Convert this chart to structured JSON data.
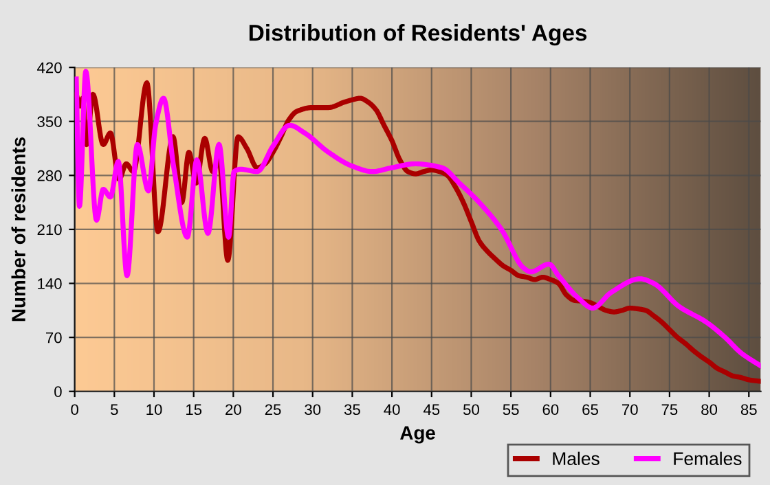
{
  "chart_data": {
    "type": "line",
    "title": "Distribution of Residents' Ages",
    "xlabel": "Age",
    "ylabel": "Number of residents",
    "xlim": [
      0,
      86.5
    ],
    "xticks": [
      0,
      5,
      10,
      15,
      20,
      25,
      30,
      35,
      40,
      45,
      50,
      55,
      60,
      65,
      70,
      75,
      80,
      85
    ],
    "ylim": [
      0,
      420
    ],
    "yticks": [
      0,
      70,
      140,
      210,
      280,
      350,
      420
    ],
    "grid": true,
    "legend": "bottom right",
    "series": [
      {
        "name": "Males",
        "color": "#aa0000",
        "x": [
          0.2,
          0.7,
          1.0,
          1.5,
          2.3,
          3.6,
          4.5,
          5.6,
          6.5,
          7.4,
          9.1,
          10.5,
          12.4,
          13.5,
          14.4,
          15.3,
          16.4,
          17.4,
          18.2,
          19.3,
          20.6,
          21.7,
          23,
          24,
          25,
          26,
          27,
          28,
          30,
          32,
          34,
          35,
          36,
          37,
          38,
          39,
          40,
          41,
          42,
          43,
          44,
          45,
          46,
          47,
          48,
          49,
          50,
          51,
          52,
          53,
          54,
          55,
          56,
          57,
          58,
          59,
          60,
          61,
          62,
          63,
          64,
          65,
          66,
          67,
          68,
          69,
          70,
          71,
          72,
          73,
          74,
          75,
          76,
          77,
          78,
          79,
          80,
          81,
          82,
          83,
          84,
          85,
          86.5
        ],
        "values": [
          385,
          370,
          380,
          320,
          385,
          320,
          335,
          275,
          295,
          285,
          400,
          207,
          330,
          245,
          310,
          270,
          328,
          285,
          300,
          170,
          330,
          315,
          290,
          295,
          310,
          330,
          352,
          363,
          368,
          368,
          375,
          378,
          380,
          375,
          365,
          345,
          325,
          300,
          285,
          282,
          285,
          287,
          285,
          280,
          265,
          245,
          220,
          195,
          182,
          172,
          163,
          157,
          150,
          148,
          145,
          148,
          145,
          140,
          125,
          118,
          117,
          115,
          110,
          105,
          103,
          105,
          108,
          107,
          105,
          98,
          90,
          80,
          70,
          62,
          53,
          45,
          38,
          30,
          25,
          20,
          18,
          15,
          13
        ]
      },
      {
        "name": "Females",
        "color": "#ff00ff",
        "x": [
          0.2,
          0.6,
          1.4,
          2.75,
          3.6,
          4.5,
          5.5,
          6.6,
          7.9,
          9.3,
          10.2,
          11.2,
          12.5,
          14.2,
          15.4,
          16.8,
          18.2,
          19.4,
          20.1,
          20.9,
          23,
          25,
          27.1,
          29,
          32,
          35,
          37.5,
          40,
          42.9,
          46.3,
          48.5,
          51,
          53.8,
          56.6,
          57.5,
          59.8,
          61,
          63.6,
          65.3,
          67.6,
          71.3,
          73,
          76.2,
          79.6,
          82,
          84,
          86.5
        ],
        "values": [
          405,
          240,
          415,
          222,
          262,
          252,
          298,
          150,
          320,
          260,
          345,
          380,
          290,
          200,
          300,
          205,
          320,
          200,
          285,
          288,
          285,
          318,
          345,
          335,
          310,
          292,
          285,
          290,
          295,
          290,
          270,
          245,
          210,
          160,
          155,
          165,
          150,
          120,
          108,
          128,
          146,
          140,
          110,
          90,
          70,
          50,
          33
        ]
      }
    ]
  }
}
